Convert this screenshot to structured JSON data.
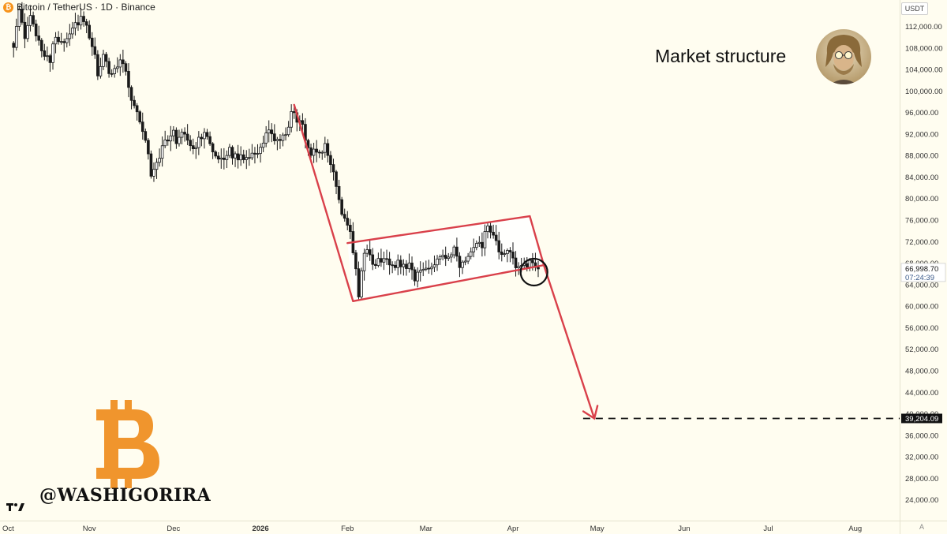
{
  "header": {
    "btc_badge": "₿",
    "symbol_text": "Bitcoin / TetherUS · 1D · Binance",
    "currency_button": "USDT"
  },
  "annotation": {
    "title": "Market structure",
    "handle": "@WASHIGORIRA",
    "logo_letter": "B"
  },
  "axis_corner_label": "A",
  "colors": {
    "background": "#fffdf0",
    "up_candle": "#ffffff",
    "down_candle": "#1a1a1a",
    "pattern_line": "#d9404a",
    "bitcoin_orange": "#f0952d"
  },
  "chart_data": {
    "type": "candlestick",
    "title": "",
    "y_axis": {
      "side": "right",
      "ylim": [
        20000,
        116000
      ],
      "tick_values": [
        24000,
        28000,
        32000,
        36000,
        40000,
        44000,
        48000,
        52000,
        56000,
        60000,
        64000,
        68000,
        72000,
        76000,
        80000,
        84000,
        88000,
        92000,
        96000,
        100000,
        104000,
        108000,
        112000
      ],
      "tick_labels": [
        "24,000.00",
        "28,000.00",
        "32,000.00",
        "36,000.00",
        "40,000.00",
        "44,000.00",
        "48,000.00",
        "52,000.00",
        "56,000.00",
        "60,000.00",
        "64,000.00",
        "68,000.00",
        "72,000.00",
        "76,000.00",
        "80,000.00",
        "84,000.00",
        "88,000.00",
        "92,000.00",
        "96,000.00",
        "100,000.00",
        "104,000.00",
        "108,000.00",
        "112,000.00"
      ]
    },
    "x_axis": {
      "labels": [
        {
          "label": "Oct",
          "day": 0
        },
        {
          "label": "Nov",
          "day": 31
        },
        {
          "label": "Dec",
          "day": 61
        },
        {
          "label": "2026",
          "day": 92,
          "bold": true
        },
        {
          "label": "Feb",
          "day": 123
        },
        {
          "label": "Mar",
          "day": 151
        },
        {
          "label": "Apr",
          "day": 182
        },
        {
          "label": "May",
          "day": 212
        },
        {
          "label": "Jun",
          "day": 243
        },
        {
          "label": "Jul",
          "day": 273
        },
        {
          "label": "Aug",
          "day": 304
        }
      ],
      "xlim_days": [
        0,
        314
      ]
    },
    "price_path": [
      [
        4,
        109000
      ],
      [
        6,
        114500
      ],
      [
        8,
        110000
      ],
      [
        10,
        113500
      ],
      [
        12,
        111000
      ],
      [
        14,
        108000
      ],
      [
        17,
        106000
      ],
      [
        19,
        110000
      ],
      [
        22,
        109500
      ],
      [
        25,
        112000
      ],
      [
        28,
        113500
      ],
      [
        30,
        111500
      ],
      [
        32,
        108500
      ],
      [
        34,
        103500
      ],
      [
        36,
        106500
      ],
      [
        38,
        103000
      ],
      [
        40,
        104500
      ],
      [
        42,
        106000
      ],
      [
        44,
        104000
      ],
      [
        46,
        98500
      ],
      [
        48,
        96000
      ],
      [
        50,
        93000
      ],
      [
        52,
        88000
      ],
      [
        53,
        84500
      ],
      [
        55,
        87000
      ],
      [
        57,
        89500
      ],
      [
        59,
        91500
      ],
      [
        61,
        92000
      ],
      [
        62,
        90500
      ],
      [
        64,
        93000
      ],
      [
        66,
        91500
      ],
      [
        68,
        88500
      ],
      [
        70,
        91000
      ],
      [
        72,
        93000
      ],
      [
        74,
        91000
      ],
      [
        75,
        88000
      ],
      [
        77,
        87000
      ],
      [
        79,
        86500
      ],
      [
        81,
        89500
      ],
      [
        83,
        87500
      ],
      [
        85,
        87800
      ],
      [
        87,
        88000
      ],
      [
        89,
        88500
      ],
      [
        91,
        89000
      ],
      [
        93,
        90000
      ],
      [
        95,
        93000
      ],
      [
        97,
        91000
      ],
      [
        99,
        90500
      ],
      [
        101,
        91500
      ],
      [
        103,
        96000
      ],
      [
        105,
        95000
      ],
      [
        107,
        93000
      ],
      [
        109,
        89500
      ],
      [
        111,
        88500
      ],
      [
        113,
        89000
      ],
      [
        115,
        89500
      ],
      [
        117,
        86500
      ],
      [
        119,
        83000
      ],
      [
        121,
        77500
      ],
      [
        123,
        76000
      ],
      [
        125,
        70500
      ],
      [
        127,
        62500
      ],
      [
        129,
        70000
      ],
      [
        131,
        69500
      ],
      [
        133,
        67500
      ],
      [
        135,
        69000
      ],
      [
        137,
        68500
      ],
      [
        139,
        67000
      ],
      [
        141,
        68500
      ],
      [
        143,
        67500
      ],
      [
        145,
        68000
      ],
      [
        147,
        65500
      ],
      [
        149,
        66500
      ],
      [
        151,
        67000
      ],
      [
        153,
        68000
      ],
      [
        155,
        69000
      ],
      [
        157,
        70000
      ],
      [
        159,
        68500
      ],
      [
        161,
        70500
      ],
      [
        163,
        67000
      ],
      [
        165,
        68800
      ],
      [
        167,
        70000
      ],
      [
        169,
        71000
      ],
      [
        171,
        71500
      ],
      [
        173,
        75000
      ],
      [
        175,
        72500
      ],
      [
        177,
        70500
      ],
      [
        179,
        69000
      ],
      [
        181,
        70500
      ],
      [
        183,
        68000
      ],
      [
        185,
        67000
      ],
      [
        187,
        67500
      ],
      [
        189,
        68000
      ],
      [
        191,
        67000
      ]
    ],
    "last_price": 66998.7,
    "last_price_label": "66,998.70",
    "countdown_label": "07:24:39",
    "target_price": 39204.09,
    "target_price_label": "39,204.09",
    "overlays": {
      "impulse_leg": {
        "start": [
          104,
          97500
        ],
        "end": [
          125,
          61000
        ]
      },
      "channel_lower": {
        "start": [
          125,
          61000
        ],
        "end": [
          193,
          67700
        ]
      },
      "channel_upper": {
        "start": [
          123,
          71800
        ],
        "end": [
          188,
          76800
        ]
      },
      "channel_right": {
        "start": [
          188,
          76800
        ],
        "end": [
          193,
          67700
        ]
      },
      "projection_arrow": {
        "start": [
          193,
          67700
        ],
        "end": [
          211,
          39204
        ]
      },
      "highlight_circle": {
        "center": [
          189.5,
          66400
        ],
        "radius_days": 3.3
      },
      "target_dashed_line": {
        "from_day": 207,
        "to_day": 314,
        "price": 39204.09
      }
    }
  }
}
